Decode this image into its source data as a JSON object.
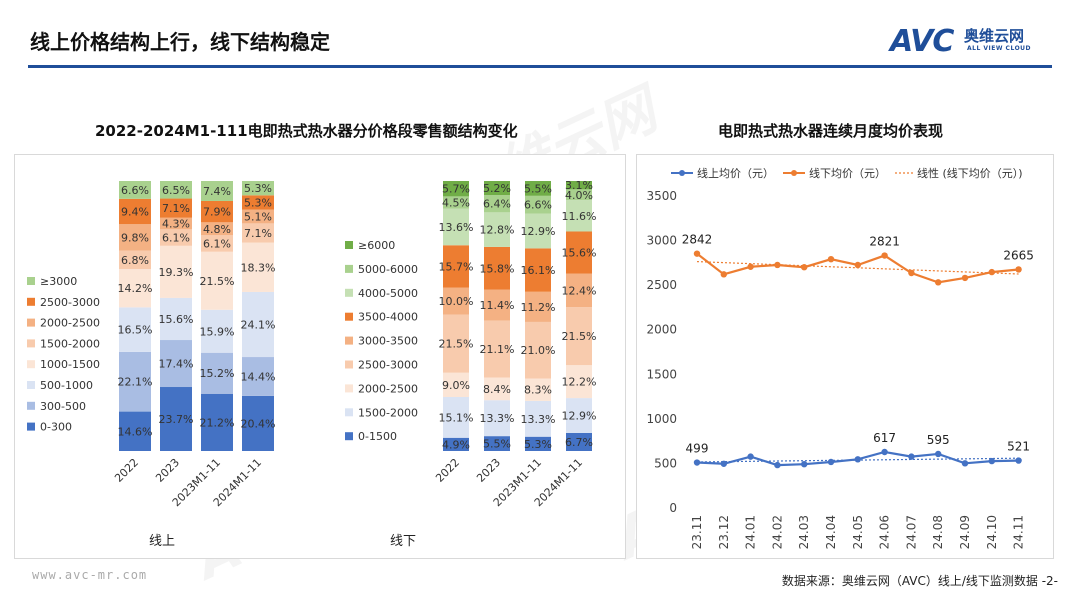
{
  "header": {
    "title": "线上价格结构上行，线下结构稳定",
    "logo_mark": "AVC",
    "logo_cn": "奥维云网",
    "logo_en": "ALL VIEW CLOUD"
  },
  "left_chart_title": "2022-2024M1-111电即热式热水器分价格段零售额结构变化",
  "right_chart_title": "电即热式热水器连续月度均价表现",
  "footer": {
    "url": "www.avc-mr.com",
    "source": "数据来源：奥维云网（AVC）线上/线下监测数据 -2-"
  },
  "colors": {
    "online": [
      "#4472c4",
      "#a9bde3",
      "#dae3f3",
      "#fbe5d6",
      "#f8cbad",
      "#f4b183",
      "#ed7d31",
      "#a9d18e"
    ],
    "offline": [
      "#4472c4",
      "#dae3f3",
      "#fbe5d6",
      "#f8cbad",
      "#f4b183",
      "#ed7d31",
      "#c5e0b4",
      "#a9d18e",
      "#70ad47"
    ],
    "online_line": "#4472c4",
    "offline_line": "#ed7d31"
  },
  "chart_data": [
    {
      "type": "bar",
      "stacked": true,
      "percent": true,
      "group_label": "线上",
      "categories": [
        "2022",
        "2023",
        "2023M1-11",
        "2024M1-11"
      ],
      "legend_position": "left",
      "series": [
        {
          "name": "0-300",
          "values": [
            14.6,
            23.7,
            21.2,
            20.4
          ]
        },
        {
          "name": "300-500",
          "values": [
            22.1,
            17.4,
            15.2,
            14.4
          ]
        },
        {
          "name": "500-1000",
          "values": [
            16.5,
            15.6,
            15.9,
            24.1
          ]
        },
        {
          "name": "1000-1500",
          "values": [
            14.2,
            19.3,
            21.5,
            18.3
          ]
        },
        {
          "name": "1500-2000",
          "values": [
            6.8,
            6.1,
            6.1,
            7.1
          ]
        },
        {
          "name": "2000-2500",
          "values": [
            9.8,
            4.3,
            4.8,
            5.1
          ]
        },
        {
          "name": "2500-3000",
          "values": [
            9.4,
            7.1,
            7.9,
            5.3
          ]
        },
        {
          "name": "≥3000",
          "values": [
            6.6,
            6.5,
            7.4,
            5.3
          ]
        }
      ]
    },
    {
      "type": "bar",
      "stacked": true,
      "percent": true,
      "group_label": "线下",
      "categories": [
        "2022",
        "2023",
        "2023M1-11",
        "2024M1-11"
      ],
      "legend_position": "left",
      "series": [
        {
          "name": "0-1500",
          "values": [
            4.9,
            5.5,
            5.3,
            6.7
          ]
        },
        {
          "name": "1500-2000",
          "values": [
            15.1,
            13.3,
            13.3,
            12.9
          ]
        },
        {
          "name": "2000-2500",
          "values": [
            9.0,
            8.4,
            8.3,
            12.2
          ]
        },
        {
          "name": "2500-3000",
          "values": [
            21.5,
            21.1,
            21.0,
            21.5
          ]
        },
        {
          "name": "3000-3500",
          "values": [
            10.0,
            11.4,
            11.2,
            12.4
          ]
        },
        {
          "name": "3500-4000",
          "values": [
            15.7,
            15.8,
            16.1,
            15.6
          ]
        },
        {
          "name": "4000-5000",
          "values": [
            13.6,
            12.8,
            12.9,
            11.6
          ]
        },
        {
          "name": "5000-6000",
          "values": [
            4.5,
            6.4,
            6.6,
            4.0
          ]
        },
        {
          "name": "≥6000",
          "values": [
            5.7,
            5.2,
            5.5,
            3.1
          ]
        }
      ]
    },
    {
      "type": "line",
      "x": [
        "23.11",
        "23.12",
        "24.01",
        "24.02",
        "24.03",
        "24.04",
        "24.05",
        "24.06",
        "24.07",
        "24.08",
        "24.09",
        "24.10",
        "24.11"
      ],
      "series": [
        {
          "name": "线上均价（元）",
          "values": [
            499,
            485,
            565,
            470,
            480,
            505,
            535,
            617,
            565,
            595,
            490,
            515,
            521
          ],
          "labels": {
            "0": "499",
            "7": "617",
            "9": "595",
            "12": "521"
          }
        },
        {
          "name": "线下均价（元）",
          "values": [
            2842,
            2610,
            2695,
            2715,
            2690,
            2780,
            2715,
            2821,
            2625,
            2520,
            2570,
            2635,
            2665
          ],
          "labels": {
            "0": "2842",
            "7": "2821",
            "12": "2665"
          }
        }
      ],
      "trendline": {
        "name": "线性 (线下均价（元）)",
        "of": "线下均价（元）"
      },
      "ylim": [
        0,
        3500
      ],
      "yticks": [
        0,
        500,
        1000,
        1500,
        2000,
        2500,
        3000,
        3500
      ],
      "grid": false,
      "legend_position": "top"
    }
  ]
}
